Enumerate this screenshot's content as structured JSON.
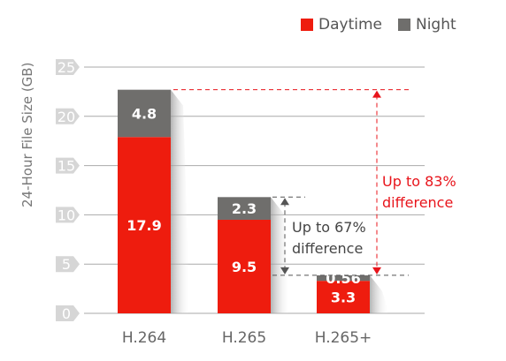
{
  "chart_data": {
    "type": "bar",
    "stacked": true,
    "categories": [
      "H.264",
      "H.265",
      "H.265+"
    ],
    "series": [
      {
        "name": "Daytime",
        "values": [
          17.9,
          9.5,
          3.3
        ],
        "color": "#ee1c0e"
      },
      {
        "name": "Night",
        "values": [
          4.8,
          2.3,
          0.56
        ],
        "color": "#6f6e6c"
      }
    ],
    "ylabel": "24-Hour File Size (GB)",
    "xlabel": "",
    "ylim": [
      0,
      25
    ],
    "yticks": [
      0,
      5,
      10,
      15,
      20,
      25
    ],
    "grid": true,
    "legend_position": "top-right",
    "annotations": [
      {
        "text_line1": "Up to 67%",
        "text_line2": "difference",
        "from": "H.265",
        "to": "H.265+",
        "color": "#444444"
      },
      {
        "text_line1": "Up to 83%",
        "text_line2": "difference",
        "from": "H.264",
        "to": "H.265+",
        "color": "#e8141b"
      }
    ]
  }
}
